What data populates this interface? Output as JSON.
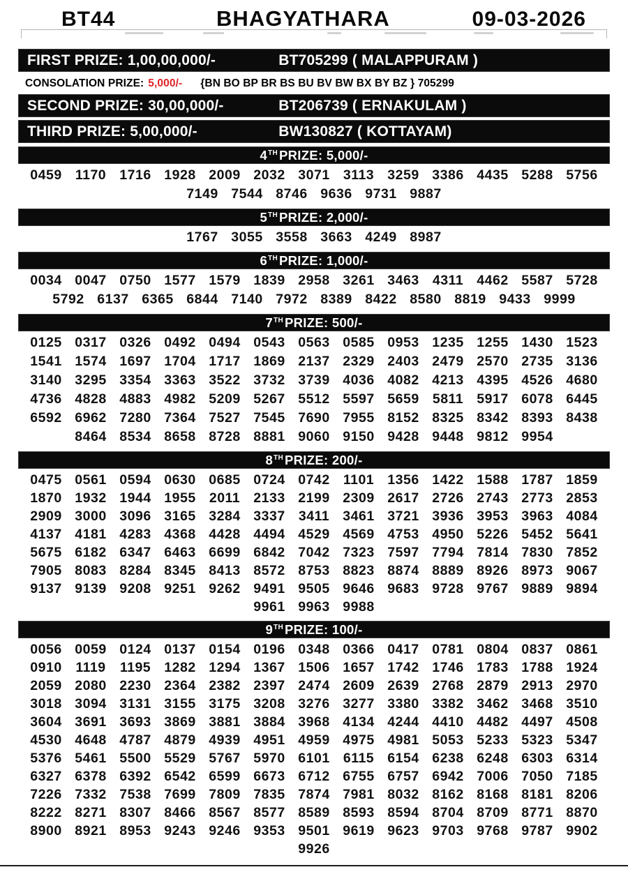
{
  "header": {
    "code": "BT44",
    "name": "BHAGYATHARA",
    "date": "09-03-2026"
  },
  "colors": {
    "consolation_amount": "#e02328",
    "bar_bg": "#0b0b0b",
    "bar_text": "#ffffff"
  },
  "top_prizes": {
    "first": {
      "label": "FIRST PRIZE: 1,00,00,000/-",
      "winner": "BT705299 ( MALAPPURAM )"
    },
    "consolation": {
      "label": "CONSOLATION PRIZE:",
      "amount": "5,000/-",
      "series": "{BN BO BP BR BS BU BV BW BX BY BZ } 705299"
    },
    "second": {
      "label": "SECOND PRIZE: 30,00,000/-",
      "winner": "BT206739 ( ERNAKULAM )"
    },
    "third": {
      "label": "THIRD PRIZE: 5,00,000/-",
      "winner": "BW130827 ( KOTTAYAM)"
    }
  },
  "tiers": [
    {
      "rank": "4",
      "sup": "TH",
      "title": " PRIZE: 5,000/-",
      "per_row": 13,
      "tight": false,
      "numbers": [
        "0459",
        "1170",
        "1716",
        "1928",
        "2009",
        "2032",
        "3071",
        "3113",
        "3259",
        "3386",
        "4435",
        "5288",
        "5756",
        "7149",
        "7544",
        "8746",
        "9636",
        "9731",
        "9887"
      ]
    },
    {
      "rank": "5",
      "sup": "TH",
      "title": " PRIZE: 2,000/-",
      "per_row": 13,
      "tight": false,
      "numbers": [
        "1767",
        "3055",
        "3558",
        "3663",
        "4249",
        "8987"
      ]
    },
    {
      "rank": "6",
      "sup": "TH",
      "title": " PRIZE: 1,000/-",
      "per_row": 13,
      "tight": false,
      "numbers": [
        "0034",
        "0047",
        "0750",
        "1577",
        "1579",
        "1839",
        "2958",
        "3261",
        "3463",
        "4311",
        "4462",
        "5587",
        "5728",
        "5792",
        "6137",
        "6365",
        "6844",
        "7140",
        "7972",
        "8389",
        "8422",
        "8580",
        "8819",
        "9433",
        "9999"
      ]
    },
    {
      "rank": "7",
      "sup": "TH",
      "title": " PRIZE: 500/-",
      "per_row": 13,
      "tight": false,
      "numbers": [
        "0125",
        "0317",
        "0326",
        "0492",
        "0494",
        "0543",
        "0563",
        "0585",
        "0953",
        "1235",
        "1255",
        "1430",
        "1523",
        "1541",
        "1574",
        "1697",
        "1704",
        "1717",
        "1869",
        "2137",
        "2329",
        "2403",
        "2479",
        "2570",
        "2735",
        "3136",
        "3140",
        "3295",
        "3354",
        "3363",
        "3522",
        "3732",
        "3739",
        "4036",
        "4082",
        "4213",
        "4395",
        "4526",
        "4680",
        "4736",
        "4828",
        "4883",
        "4982",
        "5209",
        "5267",
        "5512",
        "5597",
        "5659",
        "5811",
        "5917",
        "6078",
        "6445",
        "6592",
        "6962",
        "7280",
        "7364",
        "7527",
        "7545",
        "7690",
        "7955",
        "8152",
        "8325",
        "8342",
        "8393",
        "8438",
        "8464",
        "8534",
        "8658",
        "8728",
        "8881",
        "9060",
        "9150",
        "9428",
        "9448",
        "9812",
        "9954"
      ]
    },
    {
      "rank": "8",
      "sup": "TH",
      "title": " PRIZE: 200/-",
      "per_row": 13,
      "tight": true,
      "numbers": [
        "0475",
        "0561",
        "0594",
        "0630",
        "0685",
        "0724",
        "0742",
        "1101",
        "1356",
        "1422",
        "1588",
        "1787",
        "1859",
        "1870",
        "1932",
        "1944",
        "1955",
        "2011",
        "2133",
        "2199",
        "2309",
        "2617",
        "2726",
        "2743",
        "2773",
        "2853",
        "2909",
        "3000",
        "3096",
        "3165",
        "3284",
        "3337",
        "3411",
        "3461",
        "3721",
        "3936",
        "3953",
        "3963",
        "4084",
        "4137",
        "4181",
        "4283",
        "4368",
        "4428",
        "4494",
        "4529",
        "4569",
        "4753",
        "4950",
        "5226",
        "5452",
        "5641",
        "5675",
        "6182",
        "6347",
        "6463",
        "6699",
        "6842",
        "7042",
        "7323",
        "7597",
        "7794",
        "7814",
        "7830",
        "7852",
        "7905",
        "8083",
        "8284",
        "8345",
        "8413",
        "8572",
        "8753",
        "8823",
        "8874",
        "8889",
        "8926",
        "8973",
        "9067",
        "9137",
        "9139",
        "9208",
        "9251",
        "9262",
        "9491",
        "9505",
        "9646",
        "9683",
        "9728",
        "9767",
        "9889",
        "9894",
        "9961",
        "9963",
        "9988"
      ]
    },
    {
      "rank": "9",
      "sup": "TH",
      "title": " PRIZE: 100/-",
      "per_row": 13,
      "tight": true,
      "numbers": [
        "0056",
        "0059",
        "0124",
        "0137",
        "0154",
        "0196",
        "0348",
        "0366",
        "0417",
        "0781",
        "0804",
        "0837",
        "0861",
        "0910",
        "1119",
        "1195",
        "1282",
        "1294",
        "1367",
        "1506",
        "1657",
        "1742",
        "1746",
        "1783",
        "1788",
        "1924",
        "2059",
        "2080",
        "2230",
        "2364",
        "2382",
        "2397",
        "2474",
        "2609",
        "2639",
        "2768",
        "2879",
        "2913",
        "2970",
        "3018",
        "3094",
        "3131",
        "3155",
        "3175",
        "3208",
        "3276",
        "3277",
        "3380",
        "3382",
        "3462",
        "3468",
        "3510",
        "3604",
        "3691",
        "3693",
        "3869",
        "3881",
        "3884",
        "3968",
        "4134",
        "4244",
        "4410",
        "4482",
        "4497",
        "4508",
        "4530",
        "4648",
        "4787",
        "4879",
        "4939",
        "4951",
        "4959",
        "4975",
        "4981",
        "5053",
        "5233",
        "5323",
        "5347",
        "5376",
        "5461",
        "5500",
        "5529",
        "5767",
        "5970",
        "6101",
        "6115",
        "6154",
        "6238",
        "6248",
        "6303",
        "6314",
        "6327",
        "6378",
        "6392",
        "6542",
        "6599",
        "6673",
        "6712",
        "6755",
        "6757",
        "6942",
        "7006",
        "7050",
        "7185",
        "7226",
        "7332",
        "7538",
        "7699",
        "7809",
        "7835",
        "7874",
        "7981",
        "8032",
        "8162",
        "8168",
        "8181",
        "8206",
        "8222",
        "8271",
        "8307",
        "8466",
        "8567",
        "8577",
        "8589",
        "8593",
        "8594",
        "8704",
        "8709",
        "8771",
        "8870",
        "8900",
        "8921",
        "8953",
        "9243",
        "9246",
        "9353",
        "9501",
        "9619",
        "9623",
        "9703",
        "9768",
        "9787",
        "9902",
        "9926"
      ]
    }
  ]
}
